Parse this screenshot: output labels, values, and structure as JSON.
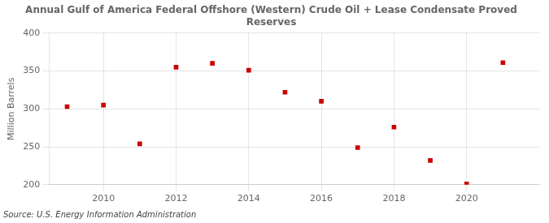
{
  "chart_data": {
    "type": "scatter",
    "title": [
      "Annual Gulf of America Federal Offshore (Western) Crude Oil + Lease Condensate Proved",
      "Reserves"
    ],
    "y_label": "Million Barrels",
    "annotations": [
      "Source: U.S. Energy Information Administration"
    ],
    "x": [
      2009,
      2010,
      2011,
      2012,
      2013,
      2014,
      2015,
      2016,
      2017,
      2018,
      2019,
      2020,
      2021
    ],
    "values": [
      303,
      305,
      254,
      355,
      360,
      351,
      322,
      310,
      249,
      276,
      232,
      201,
      361
    ],
    "color": "#cc0000",
    "marker": "square",
    "xlim": [
      2008.5,
      2022.0
    ],
    "xticks": [
      2010,
      2012,
      2014,
      2016,
      2018,
      2020
    ],
    "ylim": [
      200,
      400
    ],
    "yticks": [
      200,
      250,
      300,
      350,
      400
    ],
    "grid": true
  }
}
